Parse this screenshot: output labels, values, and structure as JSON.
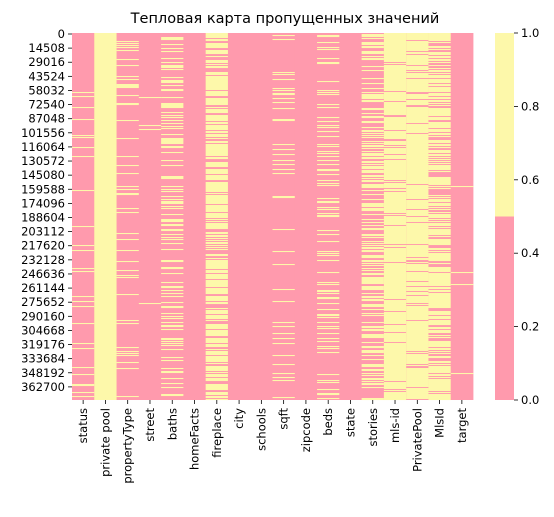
{
  "chart_data": {
    "type": "heatmap",
    "title": "Тепловая карта пропущенных значений",
    "xlabel": "",
    "ylabel": "",
    "columns": [
      "status",
      "private pool",
      "propertyType",
      "street",
      "baths",
      "homeFacts",
      "fireplace",
      "city",
      "schools",
      "sqft",
      "zipcode",
      "beds",
      "state",
      "stories",
      "mls-id",
      "PrivatePool",
      "MlsId",
      "target"
    ],
    "row_tick_labels": [
      "0",
      "14508",
      "29016",
      "43524",
      "58032",
      "72540",
      "87048",
      "101556",
      "116064",
      "130572",
      "145080",
      "159588",
      "174096",
      "188604",
      "203112",
      "217620",
      "232128",
      "246636",
      "261144",
      "275652",
      "290160",
      "304668",
      "319176",
      "333684",
      "348192",
      "362700"
    ],
    "row_tick_values": [
      0,
      14508,
      29016,
      43524,
      58032,
      72540,
      87048,
      101556,
      116064,
      130572,
      145080,
      159588,
      174096,
      188604,
      203112,
      217620,
      232128,
      246636,
      261144,
      275652,
      290160,
      304668,
      319176,
      333684,
      348192,
      362700
    ],
    "row_range": [
      0,
      377185
    ],
    "missing_fraction_per_column": [
      0.09,
      0.99,
      0.09,
      0.01,
      0.28,
      0.0,
      0.73,
      0.0,
      0.0,
      0.11,
      0.0,
      0.24,
      0.0,
      0.4,
      0.93,
      0.89,
      0.66,
      0.01
    ],
    "value_range": [
      0.0,
      1.0
    ],
    "colorbar": {
      "ticks": [
        "0.0",
        "0.2",
        "0.4",
        "0.6",
        "0.8",
        "1.0"
      ],
      "tick_values": [
        0.0,
        0.2,
        0.4,
        0.6,
        0.8,
        1.0
      ]
    },
    "colors": {
      "present": "#ff9aad",
      "missing": "#fdf8aa"
    },
    "grid": false
  }
}
